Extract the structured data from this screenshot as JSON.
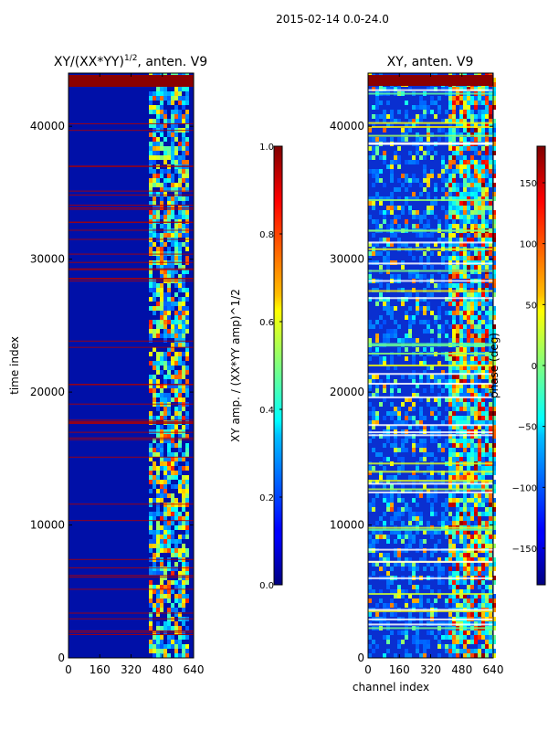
{
  "suptitle": "2015-02-14 0.0-24.0",
  "chart_data": [
    {
      "type": "heatmap",
      "title_main": "XY/(XX*YY)",
      "title_sup": "1/2",
      "title_rest": ", anten. V9",
      "xlabel": "",
      "ylabel": "time index",
      "xlim": [
        0,
        640
      ],
      "ylim": [
        0,
        44000
      ],
      "xticks": [
        "0",
        "160",
        "320",
        "480",
        "640"
      ],
      "yticks": [
        "0",
        "10000",
        "20000",
        "30000",
        "40000"
      ],
      "colorbar": {
        "label": "XY amp. / (XX*YY amp)^1/2",
        "range": [
          0.0,
          1.0
        ],
        "ticks": [
          "0.0",
          "0.2",
          "0.4",
          "0.6",
          "0.8",
          "1.0"
        ],
        "colormap": "jet"
      }
    },
    {
      "type": "heatmap",
      "title": "XY, anten. V9",
      "xlabel": "channel index",
      "ylabel": "",
      "xlim": [
        0,
        640
      ],
      "ylim": [
        0,
        44000
      ],
      "xticks": [
        "0",
        "160",
        "320",
        "480",
        "640"
      ],
      "yticks": [
        "0",
        "10000",
        "20000",
        "30000",
        "40000"
      ],
      "colorbar": {
        "label": "phase (deg)",
        "range": [
          -180,
          180
        ],
        "ticks": [
          "150",
          "100",
          "50",
          "0",
          "−50",
          "−100",
          "−150"
        ],
        "colormap": "jet"
      }
    }
  ]
}
